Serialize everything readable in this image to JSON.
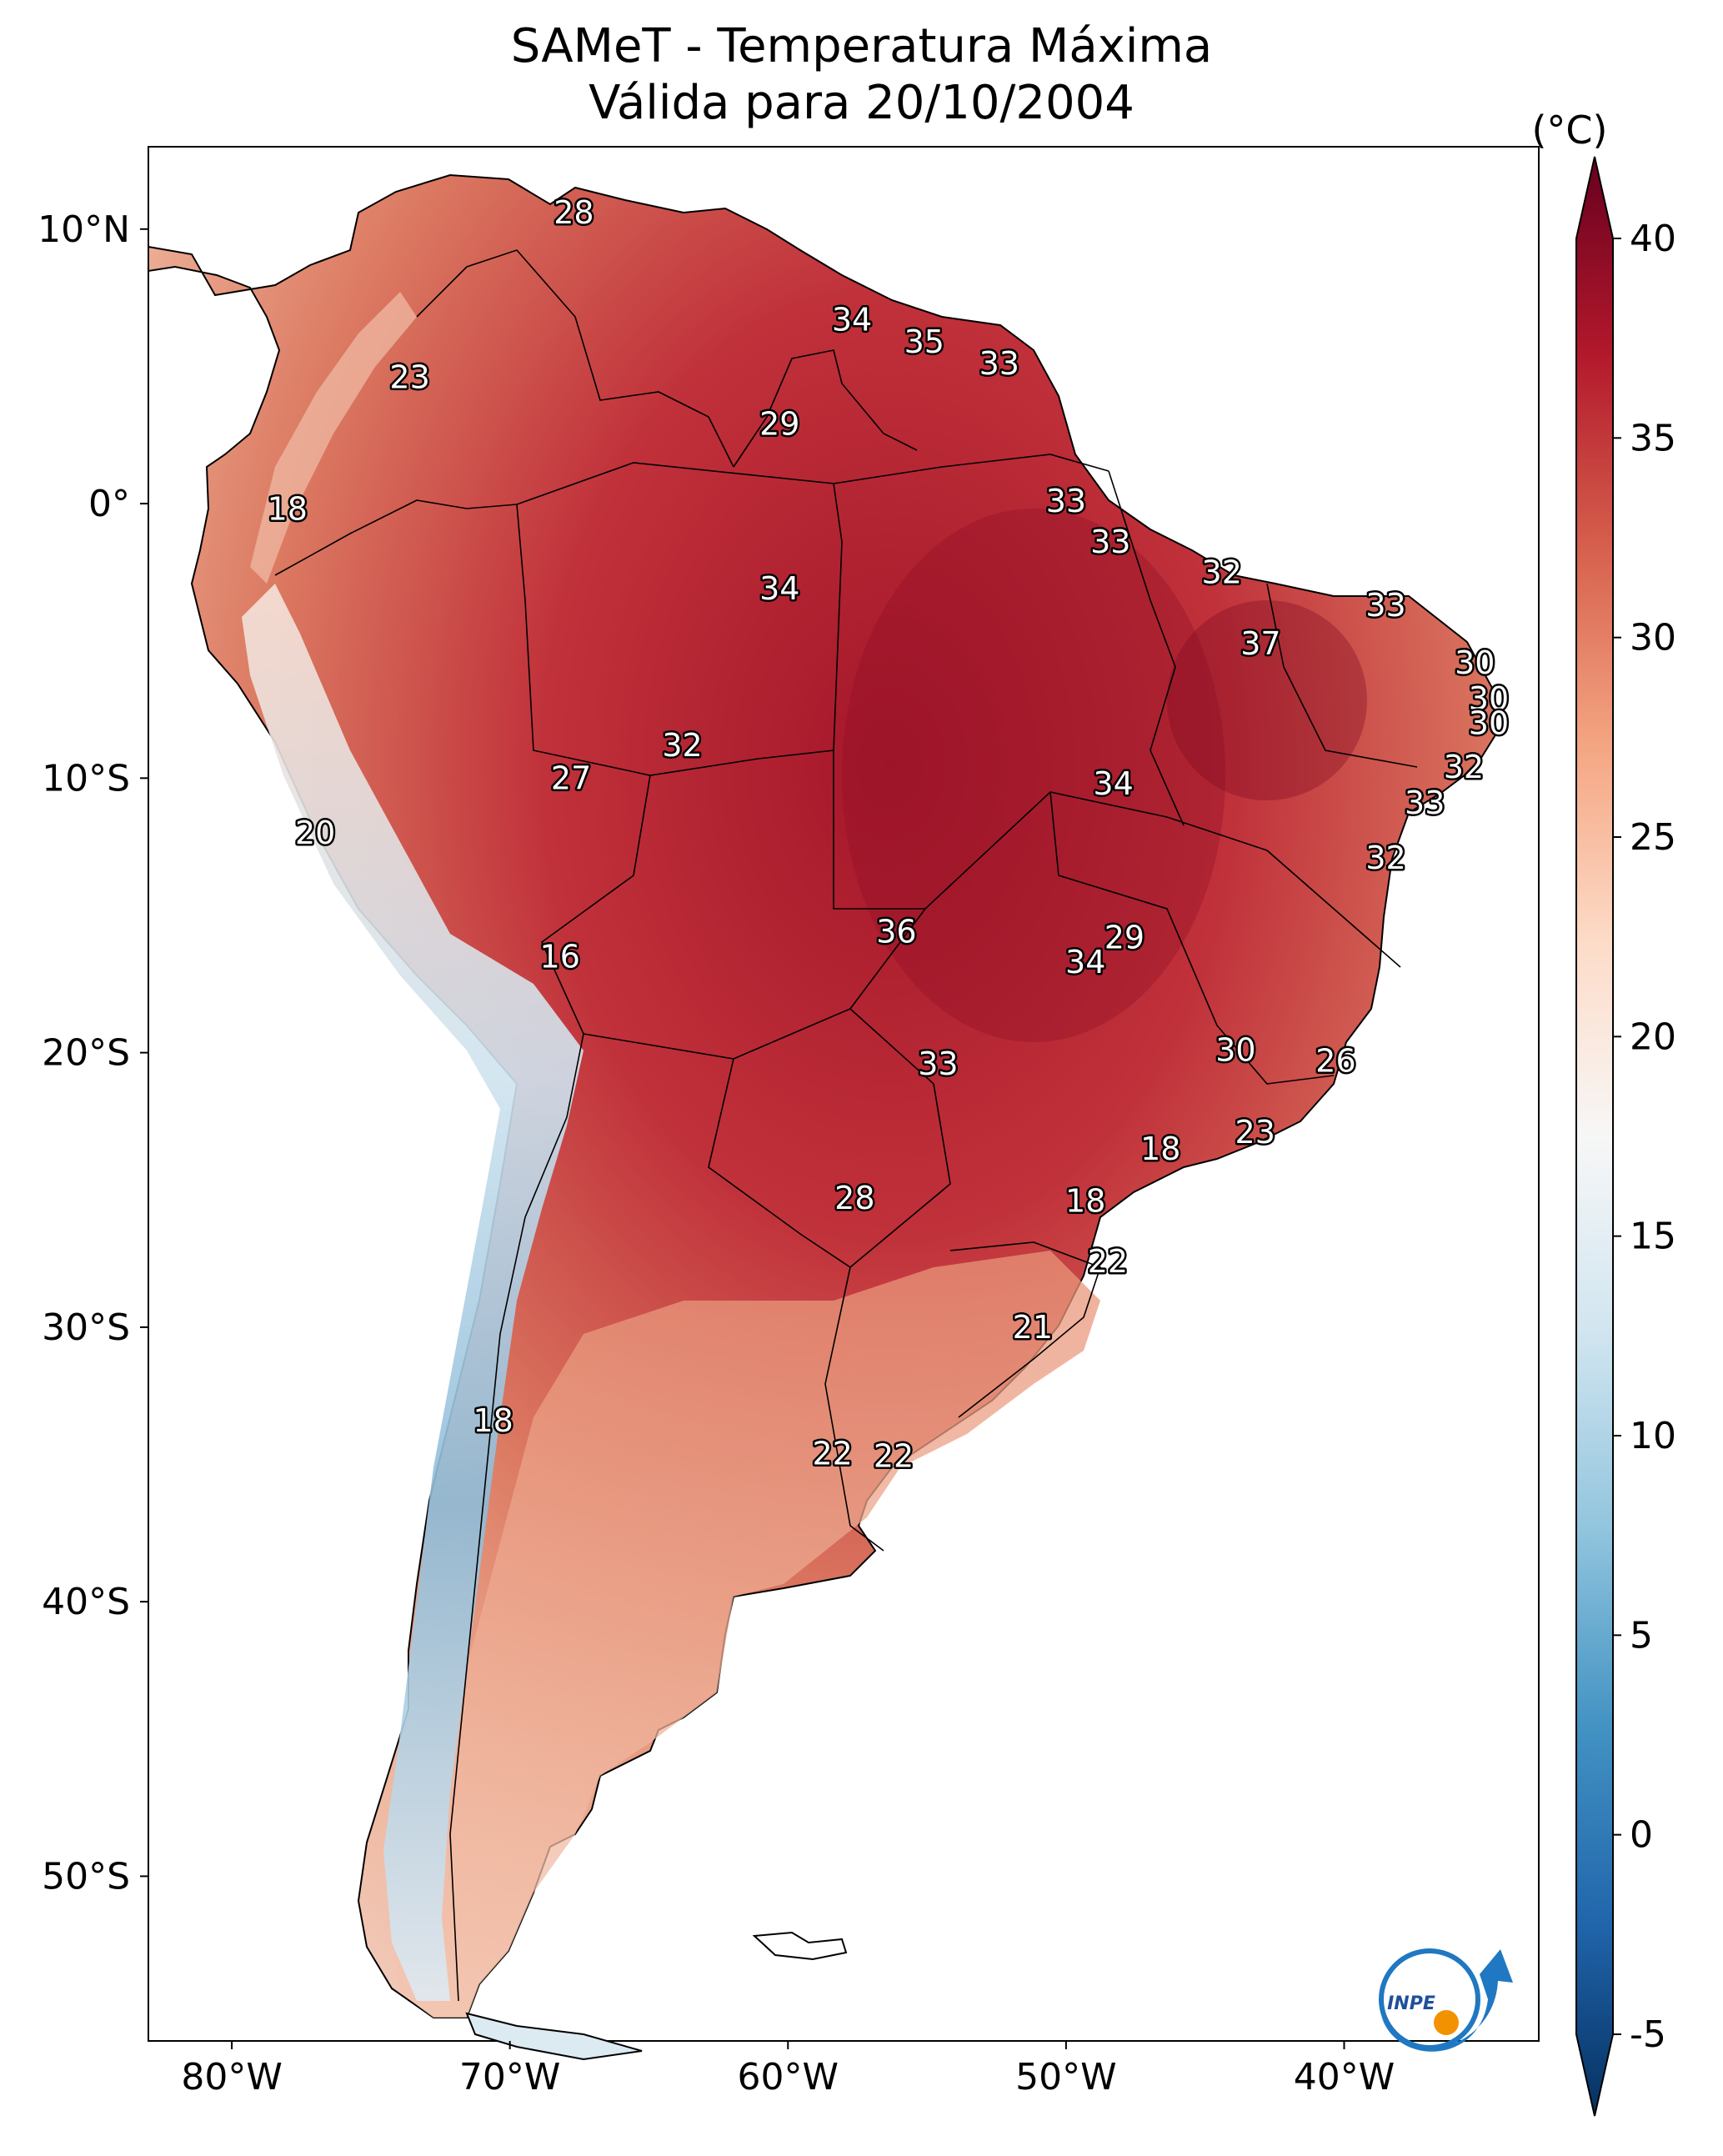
{
  "title": {
    "line1": "SAMeT - Temperatura Máxima",
    "line2": "Válida para 20/10/2004"
  },
  "map": {
    "lon_range": [
      -83,
      -33
    ],
    "lat_range": [
      -56,
      13
    ],
    "x_ticks": [
      {
        "lon": -80,
        "label": "80°W"
      },
      {
        "lon": -70,
        "label": "70°W"
      },
      {
        "lon": -60,
        "label": "60°W"
      },
      {
        "lon": -50,
        "label": "50°W"
      },
      {
        "lon": -40,
        "label": "40°W"
      }
    ],
    "y_ticks": [
      {
        "lat": 10,
        "label": "10°N"
      },
      {
        "lat": 0,
        "label": "0°"
      },
      {
        "lat": -10,
        "label": "10°S"
      },
      {
        "lat": -20,
        "label": "20°S"
      },
      {
        "lat": -30,
        "label": "30°S"
      },
      {
        "lat": -40,
        "label": "40°S"
      },
      {
        "lat": -50,
        "label": "50°S"
      }
    ],
    "station_labels": [
      {
        "lon": -67.7,
        "lat": 10.6,
        "value": "28"
      },
      {
        "lon": -73.6,
        "lat": 4.6,
        "value": "23"
      },
      {
        "lon": -78.0,
        "lat": -0.2,
        "value": "18"
      },
      {
        "lon": -57.7,
        "lat": 6.7,
        "value": "34"
      },
      {
        "lon": -55.1,
        "lat": 5.9,
        "value": "35"
      },
      {
        "lon": -52.4,
        "lat": 5.1,
        "value": "33"
      },
      {
        "lon": -60.3,
        "lat": 2.9,
        "value": "29"
      },
      {
        "lon": -50.0,
        "lat": 0.1,
        "value": "33"
      },
      {
        "lon": -48.4,
        "lat": -1.4,
        "value": "33"
      },
      {
        "lon": -60.3,
        "lat": -3.1,
        "value": "34"
      },
      {
        "lon": -44.4,
        "lat": -2.5,
        "value": "32"
      },
      {
        "lon": -38.5,
        "lat": -3.7,
        "value": "33"
      },
      {
        "lon": -43.0,
        "lat": -5.1,
        "value": "37"
      },
      {
        "lon": -35.3,
        "lat": -5.8,
        "value": "30"
      },
      {
        "lon": -34.8,
        "lat": -7.1,
        "value": "30"
      },
      {
        "lon": -34.8,
        "lat": -8.0,
        "value": "30"
      },
      {
        "lon": -35.7,
        "lat": -9.6,
        "value": "32"
      },
      {
        "lon": -37.1,
        "lat": -10.9,
        "value": "33"
      },
      {
        "lon": -63.8,
        "lat": -8.8,
        "value": "32"
      },
      {
        "lon": -67.8,
        "lat": -10.0,
        "value": "27"
      },
      {
        "lon": -48.3,
        "lat": -10.2,
        "value": "34"
      },
      {
        "lon": -38.5,
        "lat": -12.9,
        "value": "32"
      },
      {
        "lon": -77.0,
        "lat": -12.0,
        "value": "20"
      },
      {
        "lon": -68.2,
        "lat": -16.5,
        "value": "16"
      },
      {
        "lon": -56.1,
        "lat": -15.6,
        "value": "36"
      },
      {
        "lon": -47.9,
        "lat": -15.8,
        "value": "29"
      },
      {
        "lon": -49.3,
        "lat": -16.7,
        "value": "34"
      },
      {
        "lon": -43.9,
        "lat": -19.9,
        "value": "30"
      },
      {
        "lon": -40.3,
        "lat": -20.3,
        "value": "26"
      },
      {
        "lon": -54.6,
        "lat": -20.4,
        "value": "33"
      },
      {
        "lon": -43.2,
        "lat": -22.9,
        "value": "23"
      },
      {
        "lon": -46.6,
        "lat": -23.5,
        "value": "18"
      },
      {
        "lon": -57.6,
        "lat": -25.3,
        "value": "28"
      },
      {
        "lon": -49.3,
        "lat": -25.4,
        "value": "18"
      },
      {
        "lon": -48.5,
        "lat": -27.6,
        "value": "22"
      },
      {
        "lon": -51.2,
        "lat": -30.0,
        "value": "21"
      },
      {
        "lon": -70.6,
        "lat": -33.4,
        "value": "18"
      },
      {
        "lon": -58.4,
        "lat": -34.6,
        "value": "22"
      },
      {
        "lon": -56.2,
        "lat": -34.7,
        "value": "22"
      }
    ]
  },
  "colorbar": {
    "unit_label": "(°C)",
    "min": -5,
    "max": 40,
    "ticks": [
      "-5",
      "0",
      "5",
      "10",
      "15",
      "20",
      "25",
      "30",
      "35",
      "40"
    ],
    "stops": [
      "#053061",
      "#2166ac",
      "#4393c3",
      "#92c5de",
      "#d1e5f0",
      "#f7f7f7",
      "#fddbc7",
      "#f4a582",
      "#d6604d",
      "#b2182b",
      "#67001f"
    ]
  },
  "logo": {
    "text": "INPE",
    "ring_color": "#1f78c1",
    "dot_color": "#f39200"
  }
}
